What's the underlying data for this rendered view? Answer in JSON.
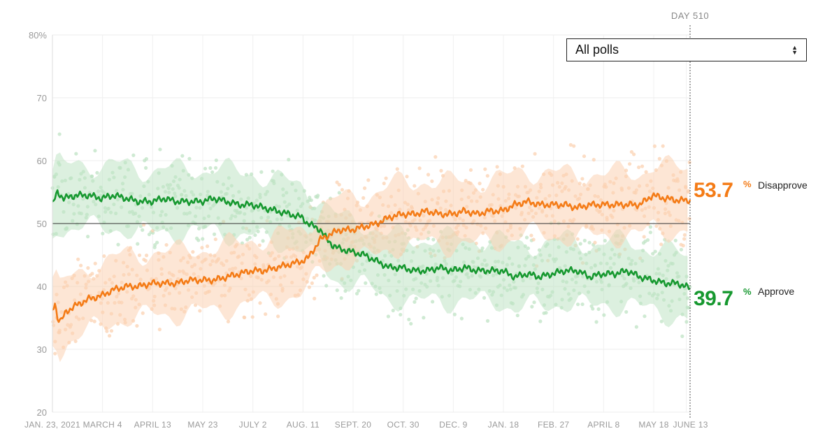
{
  "dropdown": {
    "selected": "All polls"
  },
  "day_marker": {
    "label": "DAY 510"
  },
  "colors": {
    "approve": "#16982f",
    "disapprove": "#f47b16",
    "approve_light": "#bfe3c4",
    "disapprove_light": "#fbd1b2"
  },
  "chart_data": {
    "type": "line",
    "title": "",
    "xlabel": "",
    "ylabel": "",
    "ylim": [
      20,
      80
    ],
    "y_ticks": [
      "80%",
      "70",
      "60",
      "50",
      "40",
      "30",
      "20"
    ],
    "x_tick_labels": [
      "JAN. 23, 2021",
      "MARCH 4",
      "APRIL 13",
      "MAY 23",
      "JULY 2",
      "AUG. 11",
      "SEPT. 20",
      "OCT. 30",
      "DEC. 9",
      "JAN. 18",
      "FEB. 27",
      "APRIL 8",
      "MAY 18",
      "JUNE 13"
    ],
    "x_tick_days": [
      1,
      41,
      81,
      121,
      161,
      201,
      241,
      281,
      321,
      361,
      401,
      441,
      481,
      507
    ],
    "x_range_days": [
      1,
      510
    ],
    "reference_line": 50,
    "grid": true,
    "series": [
      {
        "name": "Approve",
        "final_value": "39.7",
        "days": [
          1,
          5,
          10,
          20,
          30,
          40,
          50,
          60,
          70,
          80,
          90,
          100,
          110,
          120,
          130,
          140,
          150,
          160,
          170,
          180,
          190,
          200,
          205,
          210,
          215,
          220,
          225,
          230,
          240,
          250,
          260,
          270,
          280,
          290,
          300,
          310,
          320,
          330,
          340,
          350,
          360,
          370,
          380,
          390,
          400,
          410,
          420,
          430,
          440,
          450,
          460,
          470,
          480,
          490,
          500,
          510
        ],
        "values": [
          53,
          55,
          54,
          54.5,
          54.5,
          54,
          54.5,
          54,
          53.5,
          53.5,
          54,
          53.5,
          53.5,
          53.5,
          54,
          53.5,
          53,
          53,
          52.5,
          52,
          51.5,
          51,
          50,
          49.5,
          49,
          47.5,
          46.5,
          46,
          45.5,
          45,
          44,
          43,
          43,
          42.5,
          42.5,
          43,
          42.5,
          43,
          42.5,
          42.5,
          42.5,
          41.5,
          42,
          41.5,
          42,
          42.5,
          42.5,
          41.5,
          42,
          42,
          42.5,
          41.5,
          41,
          40.5,
          40.5,
          39.7
        ]
      },
      {
        "name": "Disapprove",
        "final_value": "53.7",
        "days": [
          1,
          3,
          5,
          8,
          12,
          20,
          30,
          40,
          50,
          60,
          70,
          80,
          90,
          100,
          110,
          120,
          130,
          140,
          150,
          160,
          170,
          180,
          190,
          200,
          205,
          210,
          215,
          220,
          225,
          230,
          240,
          250,
          260,
          270,
          280,
          290,
          300,
          310,
          320,
          330,
          340,
          350,
          360,
          370,
          380,
          390,
          400,
          410,
          420,
          430,
          440,
          450,
          460,
          470,
          480,
          490,
          500,
          510
        ],
        "values": [
          36,
          37.5,
          35,
          34.5,
          36,
          37,
          38,
          38.5,
          39.5,
          40,
          40,
          40.5,
          40.5,
          40.5,
          41,
          41,
          41,
          41.5,
          42,
          42.5,
          42.5,
          43,
          43.5,
          44,
          44.5,
          46,
          47.5,
          48,
          48.5,
          49,
          49,
          49.5,
          50,
          51,
          51.5,
          51.5,
          52,
          51.5,
          51.5,
          52,
          51.5,
          52,
          52,
          53,
          53.5,
          53,
          53,
          53,
          52.5,
          53,
          53,
          53,
          53,
          53,
          54.5,
          54,
          53.7,
          53.7
        ]
      }
    ]
  }
}
